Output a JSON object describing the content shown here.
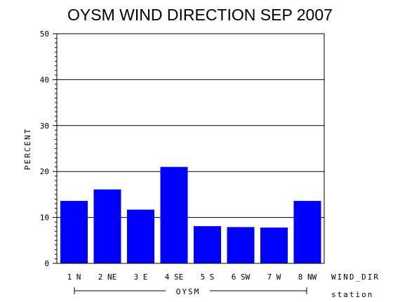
{
  "chart_data": {
    "type": "bar",
    "title": "OYSM WIND DIRECTION SEP 2007",
    "ylabel": "PERCENT",
    "xlabel": "WIND_DIR",
    "group_label_name": "station",
    "group_label": "OYSM",
    "ylim": [
      0,
      50
    ],
    "yticks": [
      "0",
      "10",
      "20",
      "30",
      "40",
      "50"
    ],
    "categories": [
      "1 N",
      "2 NE",
      "3 E",
      "4 SE",
      "5 S",
      "6 SW",
      "7 W",
      "8 NW"
    ],
    "values": [
      13.6,
      16.1,
      11.7,
      21.0,
      8.1,
      7.9,
      7.8,
      13.6
    ],
    "bar_color": "#0000ff",
    "grid": true
  }
}
